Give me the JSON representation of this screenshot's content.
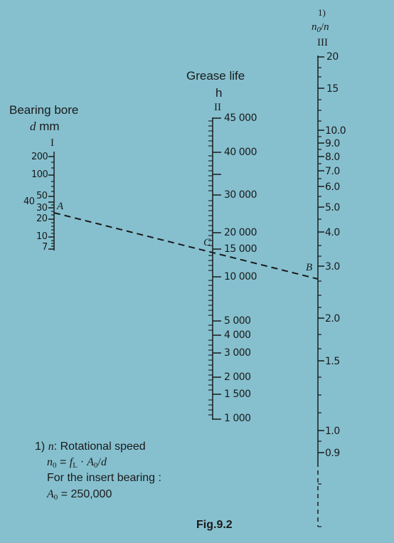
{
  "scale_I": {
    "title": "Bearing bore",
    "variable": "d",
    "unit": "mm",
    "roman": "I",
    "tick_labels": [
      "200",
      "100",
      "50",
      "40",
      "30",
      "20",
      "10",
      "7"
    ]
  },
  "scale_II": {
    "title": "Grease life",
    "unit": "h",
    "roman": "II",
    "tick_labels": [
      "45 000",
      "40 000",
      "30 000",
      "20 000",
      "15 000",
      "10 000",
      "5 000",
      "4 000",
      "3 000",
      "2 000",
      "1 500",
      "1 000"
    ]
  },
  "scale_III": {
    "footnote_ref": "1)",
    "variable_num": "n",
    "variable_num_sub": "0",
    "variable_den": "n",
    "roman": "III",
    "tick_labels": [
      "20",
      "15",
      "10.0",
      "9.0",
      "8.0",
      "7.0",
      "6.0",
      "5.0",
      "4.0",
      "3.0",
      "2.0",
      "1.5",
      "1.0",
      "0.9"
    ]
  },
  "points": {
    "A": "A",
    "B": "B",
    "C": "C"
  },
  "footnote": {
    "marker": "1)",
    "n_symbol": "n",
    "n_text": ": Rotational speed",
    "formula_lhs": "n",
    "formula_lhs_sub": "0",
    "formula_eq": " = ",
    "formula_f": "f",
    "formula_f_sub": "L",
    "formula_dot": " · ",
    "formula_A": "A",
    "formula_A_sub": "0",
    "formula_slash": "/",
    "formula_d": "d",
    "insert_text": "For the insert bearing :",
    "a0_symbol": "A",
    "a0_sub": "0",
    "a0_value": " = 250,000"
  },
  "figure_label": "Fig.9.2",
  "colors": {
    "background": "#86c0cf",
    "ink": "#1a1a1a"
  }
}
